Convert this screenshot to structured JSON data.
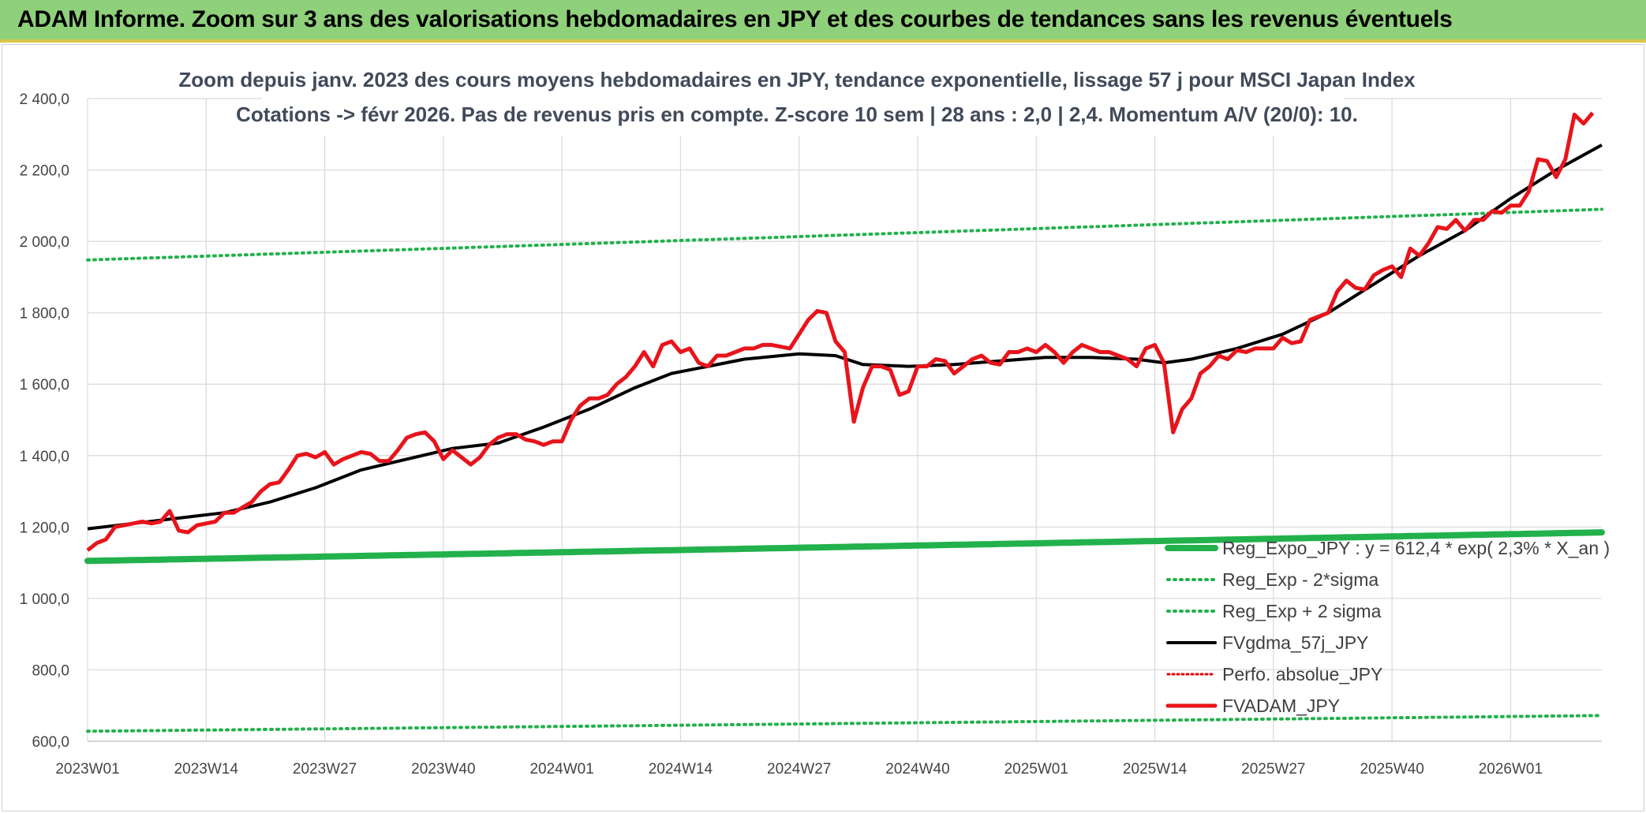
{
  "banner": {
    "title": "ADAM Informe. Zoom sur 3 ans des valorisations hebdomadaires en JPY et des courbes de tendances sans les revenus éventuels"
  },
  "colors": {
    "banner_bg": "#8fd07a",
    "reg_expo": "#22b14c",
    "sigma": "#22b14c",
    "fvgdma": "#000000",
    "perfo": "#e00000",
    "fvadam": "#e8141b",
    "grid": "#d9d9d9"
  },
  "chart_data": {
    "type": "line",
    "title_lines": [
      "Zoom depuis janv. 2023 des cours moyens hebdomadaires en JPY, tendance exponentielle, lissage 57 j pour MSCI Japan Index",
      "Cotations -> févr 2026. Pas de revenus pris en compte. Z-score 10 sem | 28 ans : 2,0 | 2,4. Momentum A/V (20/0): 10."
    ],
    "ylim": [
      600,
      2400
    ],
    "y_ticks": [
      600,
      800,
      1000,
      1200,
      1400,
      1600,
      1800,
      2000,
      2200,
      2400
    ],
    "y_tick_labels": [
      "600,0",
      "800,0",
      "1 000,0",
      "1 200,0",
      "1 400,0",
      "1 600,0",
      "1 800,0",
      "2 000,0",
      "2 200,0",
      "2 400,0"
    ],
    "x_ticks": [
      {
        "label": "2023W01",
        "index": 0
      },
      {
        "label": "2023W14",
        "index": 13
      },
      {
        "label": "2023W27",
        "index": 26
      },
      {
        "label": "2023W40",
        "index": 39
      },
      {
        "label": "2024W01",
        "index": 52
      },
      {
        "label": "2024W14",
        "index": 65
      },
      {
        "label": "2024W27",
        "index": 78
      },
      {
        "label": "2024W40",
        "index": 91
      },
      {
        "label": "2025W01",
        "index": 104
      },
      {
        "label": "2025W14",
        "index": 117
      },
      {
        "label": "2025W27",
        "index": 130
      },
      {
        "label": "2025W40",
        "index": 143
      },
      {
        "label": "2026W01",
        "index": 156
      }
    ],
    "n_weeks": 166,
    "series": [
      {
        "name": "Reg_Expo_JPY : y = 612,4 * exp( 2,3% *  X_an )",
        "style": "thick",
        "endpoints": [
          1105,
          1185
        ]
      },
      {
        "name": "Reg_Exp - 2*sigma",
        "style": "dotted",
        "endpoints": [
          628,
          672
        ]
      },
      {
        "name": "Reg_Exp + 2 sigma",
        "style": "dotted",
        "endpoints": [
          1948,
          2090
        ]
      },
      {
        "name": "FVgdma_57j_JPY",
        "style": "solid-black",
        "keypoints": [
          [
            0,
            1195
          ],
          [
            5,
            1210
          ],
          [
            10,
            1225
          ],
          [
            15,
            1240
          ],
          [
            20,
            1270
          ],
          [
            25,
            1310
          ],
          [
            30,
            1360
          ],
          [
            35,
            1390
          ],
          [
            40,
            1420
          ],
          [
            45,
            1435
          ],
          [
            50,
            1480
          ],
          [
            55,
            1530
          ],
          [
            60,
            1590
          ],
          [
            64,
            1630
          ],
          [
            68,
            1650
          ],
          [
            72,
            1670
          ],
          [
            78,
            1685
          ],
          [
            82,
            1680
          ],
          [
            85,
            1655
          ],
          [
            90,
            1650
          ],
          [
            95,
            1655
          ],
          [
            100,
            1665
          ],
          [
            105,
            1675
          ],
          [
            110,
            1675
          ],
          [
            115,
            1670
          ],
          [
            118,
            1660
          ],
          [
            121,
            1670
          ],
          [
            126,
            1700
          ],
          [
            131,
            1740
          ],
          [
            136,
            1800
          ],
          [
            141,
            1880
          ],
          [
            146,
            1960
          ],
          [
            151,
            2030
          ],
          [
            156,
            2120
          ],
          [
            161,
            2200
          ],
          [
            166,
            2270
          ]
        ]
      },
      {
        "name": "Perfo. absolue_JPY",
        "style": "dotted-red",
        "values": []
      },
      {
        "name": "FVADAM_JPY",
        "style": "solid-red",
        "values": [
          1135,
          1155,
          1165,
          1200,
          1205,
          1210,
          1215,
          1210,
          1215,
          1245,
          1190,
          1185,
          1205,
          1210,
          1215,
          1240,
          1240,
          1255,
          1270,
          1300,
          1320,
          1325,
          1360,
          1400,
          1405,
          1395,
          1410,
          1375,
          1390,
          1400,
          1410,
          1405,
          1385,
          1385,
          1415,
          1450,
          1460,
          1465,
          1440,
          1390,
          1415,
          1395,
          1375,
          1395,
          1430,
          1450,
          1460,
          1460,
          1445,
          1440,
          1430,
          1440,
          1440,
          1500,
          1540,
          1560,
          1560,
          1570,
          1600,
          1620,
          1650,
          1690,
          1650,
          1710,
          1720,
          1690,
          1700,
          1660,
          1650,
          1680,
          1680,
          1690,
          1700,
          1700,
          1710,
          1710,
          1705,
          1700,
          1740,
          1780,
          1805,
          1800,
          1720,
          1690,
          1495,
          1590,
          1650,
          1650,
          1640,
          1570,
          1580,
          1650,
          1650,
          1670,
          1665,
          1630,
          1650,
          1670,
          1680,
          1660,
          1655,
          1690,
          1690,
          1700,
          1690,
          1710,
          1690,
          1660,
          1690,
          1710,
          1700,
          1690,
          1690,
          1680,
          1670,
          1650,
          1700,
          1710,
          1660,
          1465,
          1530,
          1560,
          1630,
          1650,
          1680,
          1670,
          1695,
          1690,
          1700,
          1700,
          1700,
          1730,
          1715,
          1720,
          1780,
          1790,
          1800,
          1860,
          1890,
          1870,
          1865,
          1905,
          1920,
          1930,
          1900,
          1980,
          1960,
          1995,
          2040,
          2035,
          2060,
          2030,
          2060,
          2060,
          2085,
          2080,
          2100,
          2100,
          2140,
          2230,
          2225,
          2180,
          2230,
          2355,
          2330,
          2360
        ]
      }
    ],
    "legend_location": "bottom-right",
    "grid": true
  }
}
